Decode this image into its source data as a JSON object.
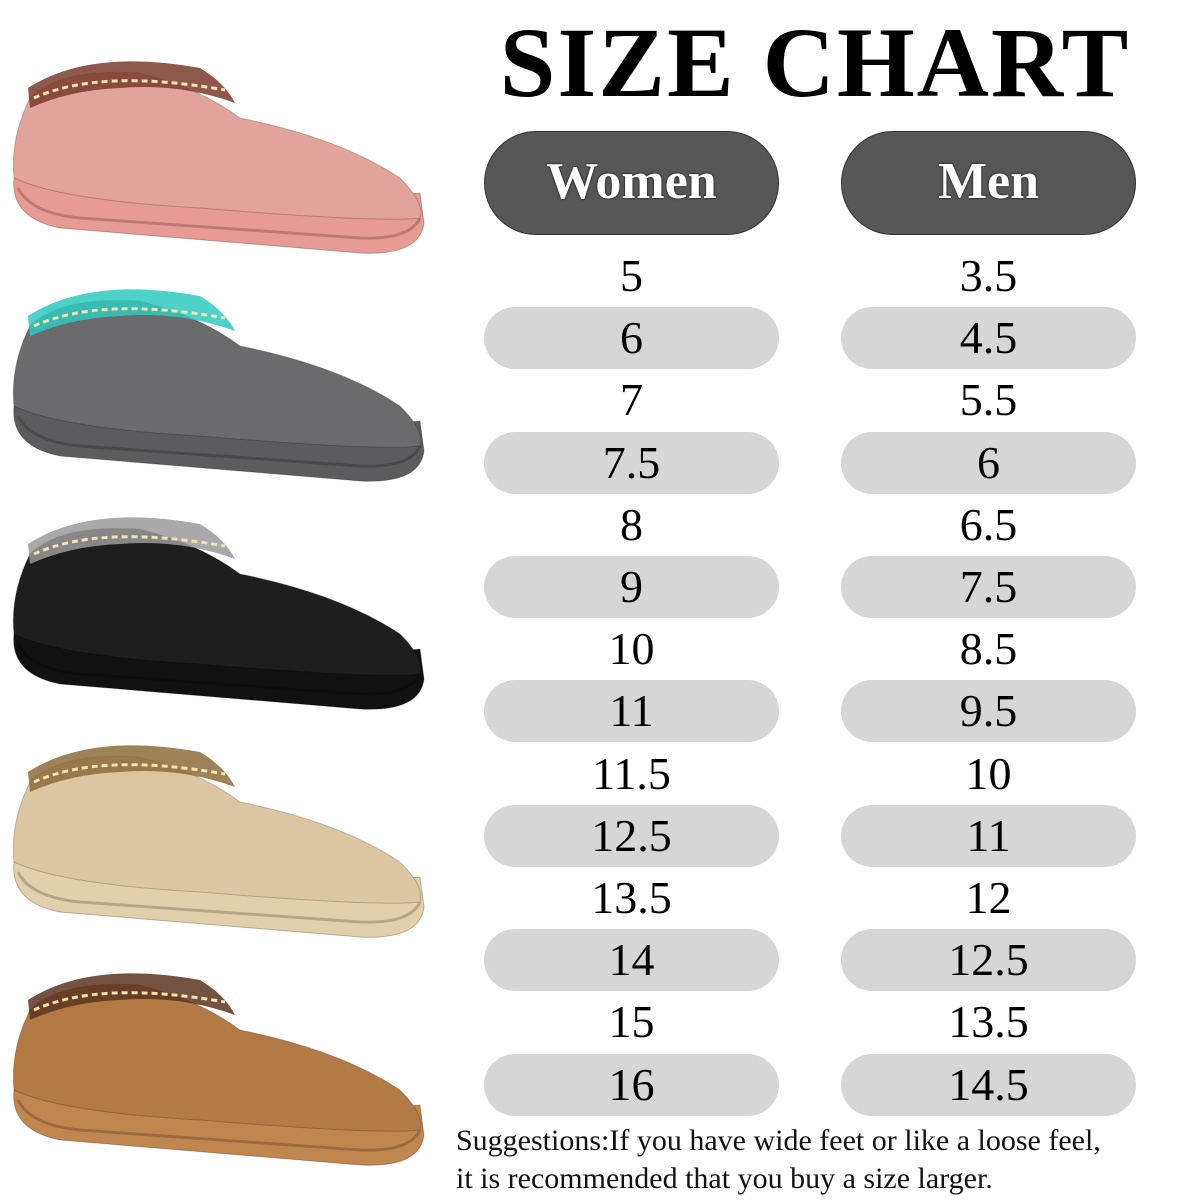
{
  "title": "SIZE CHART",
  "columns": [
    "Women",
    "Men"
  ],
  "rows": [
    [
      "5",
      "3.5"
    ],
    [
      "6",
      "4.5"
    ],
    [
      "7",
      "5.5"
    ],
    [
      "7.5",
      "6"
    ],
    [
      "8",
      "6.5"
    ],
    [
      "9",
      "7.5"
    ],
    [
      "10",
      "8.5"
    ],
    [
      "11",
      "9.5"
    ],
    [
      "11.5",
      "10"
    ],
    [
      "12.5",
      "11"
    ],
    [
      "13.5",
      "12"
    ],
    [
      "14",
      "12.5"
    ],
    [
      "15",
      "13.5"
    ],
    [
      "16",
      "14.5"
    ]
  ],
  "note_line1": "Suggestions:If you have wide feet or like a loose feel,",
  "note_line2": "it is recommended that you buy a size larger.",
  "colors": {
    "header_pill": "#575757",
    "row_shade": "#d6d6d6"
  },
  "slipper_colors": [
    {
      "name": "pink",
      "upper": "#e2a39a",
      "sole": "#e89a94",
      "trim": "#7a3b2e"
    },
    {
      "name": "grey",
      "upper": "#6b6b6d",
      "sole": "#5c5c5e",
      "trim": "#2fc9c0"
    },
    {
      "name": "black",
      "upper": "#1e1e1e",
      "sole": "#111111",
      "trim": "#9a9a9a"
    },
    {
      "name": "sand",
      "upper": "#dcc5a2",
      "sole": "#e4cfac",
      "trim": "#8d6b3a"
    },
    {
      "name": "chestnut",
      "upper": "#b47a45",
      "sole": "#c18650",
      "trim": "#5a3420"
    }
  ]
}
